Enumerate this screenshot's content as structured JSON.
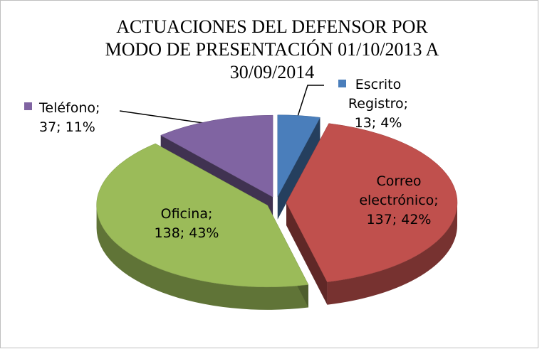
{
  "chart_data": {
    "type": "pie",
    "title": "ACTUACIONES DEL DEFENSOR POR\nMODO DE PRESENTACIÓN 01/10/2013 A\n30/09/2014",
    "values": [
      13,
      137,
      138,
      37
    ],
    "value_labels": [
      "Escrito\nRegistro;\n13; 4%",
      "Correo\nelectrónico;\n137; 42%",
      "Oficina;\n138; 43%",
      "Teléfono;\n37; 11%"
    ],
    "colors": [
      "#4a7ebb",
      "#c0504d",
      "#9bbb59",
      "#8064a2"
    ]
  }
}
